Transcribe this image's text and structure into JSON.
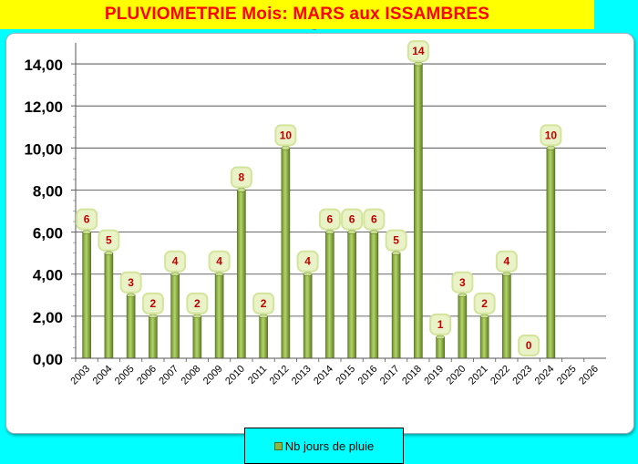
{
  "header": {
    "title": "PLUVIOMETRIE Mois: MARS aux ISSAMBRES",
    "handle": "...."
  },
  "colors": {
    "background": "#00ffff",
    "title_background": "#ffff00",
    "title_text": "#ff0000",
    "bar_light": "#b5d46a",
    "bar_dark": "#6b8e2a",
    "label_text": "#c00000",
    "label_box": "#eaf2c8"
  },
  "chart_data": {
    "type": "bar",
    "categories": [
      "2003",
      "2004",
      "2005",
      "2006",
      "2007",
      "2008",
      "2009",
      "2010",
      "2011",
      "2012",
      "2013",
      "2014",
      "2015",
      "2016",
      "2017",
      "2018",
      "2019",
      "2020",
      "2021",
      "2022",
      "2023",
      "2024",
      "2025",
      "2026"
    ],
    "series": [
      {
        "name": "Nb jours de pluie",
        "values": [
          6,
          5,
          3,
          2,
          4,
          2,
          4,
          8,
          2,
          10,
          4,
          6,
          6,
          6,
          5,
          14,
          1,
          3,
          2,
          4,
          0,
          10,
          null,
          null
        ]
      }
    ],
    "y_ticks": [
      "0,00",
      "2,00",
      "4,00",
      "6,00",
      "8,00",
      "10,00",
      "12,00",
      "14,00"
    ],
    "ylim": [
      0,
      15
    ],
    "grid": true,
    "legend_position": "bottom"
  }
}
